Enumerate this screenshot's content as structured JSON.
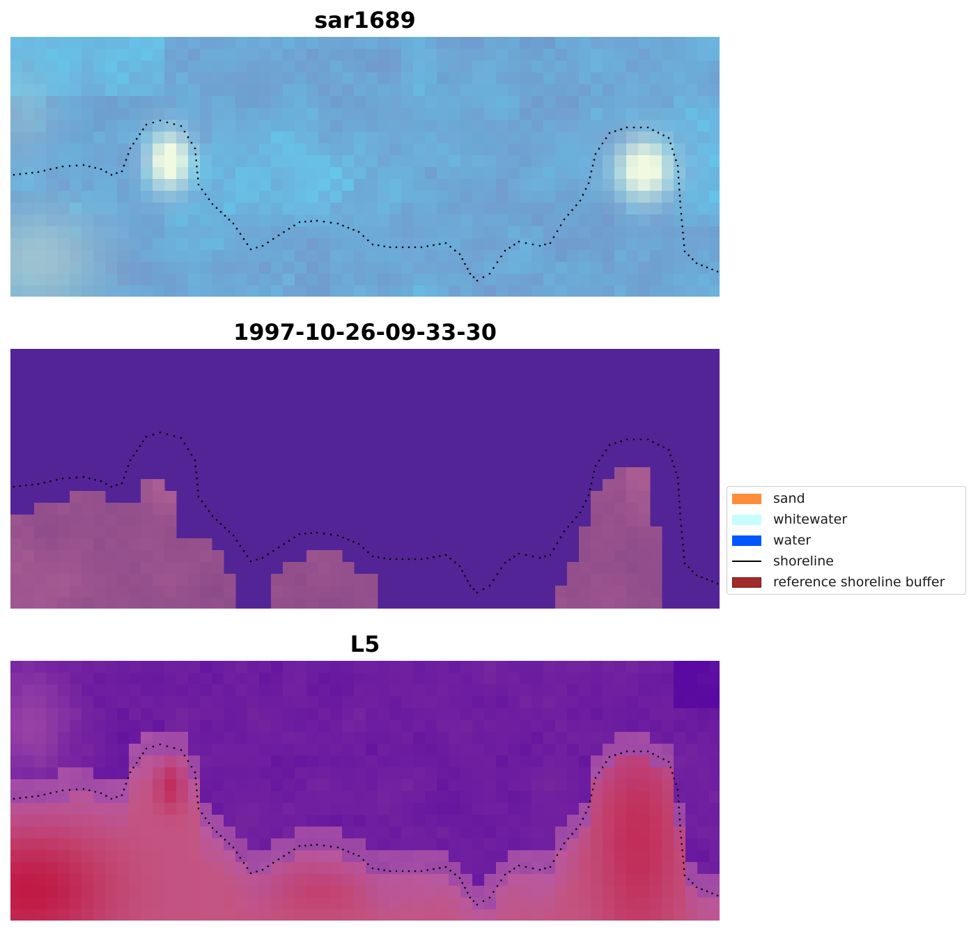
{
  "panels": [
    {
      "title": "sar1689",
      "kind": "rgb"
    },
    {
      "title": "1997-10-26-09-33-30",
      "kind": "classified"
    },
    {
      "title": "L5",
      "kind": "index"
    }
  ],
  "legend": {
    "items": [
      {
        "label": "sand",
        "color": "#ff8c3a",
        "type": "patch"
      },
      {
        "label": "whitewater",
        "color": "#c8fdfd",
        "type": "patch"
      },
      {
        "label": "water",
        "color": "#0057ff",
        "type": "patch"
      },
      {
        "label": "shoreline",
        "color": "#000000",
        "type": "line"
      },
      {
        "label": "reference shoreline buffer",
        "color": "#a12a2a",
        "edge": "#7a1212",
        "type": "patch"
      }
    ]
  },
  "colors": {
    "buffer_purple": "#532495",
    "buffer_pink": "#8a4a8a",
    "index_purple": "#7a2a9e",
    "index_red": "#c0133e"
  }
}
